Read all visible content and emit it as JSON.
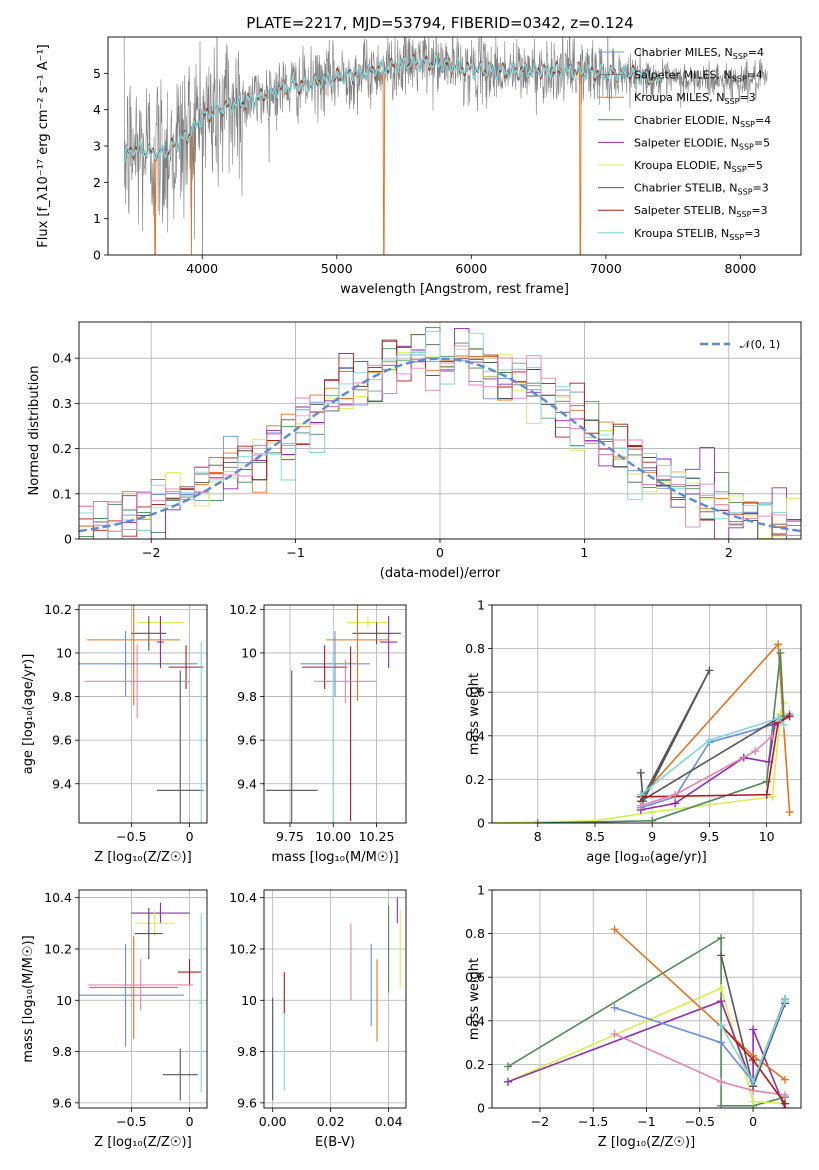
{
  "figure": {
    "title": "PLATE=2217, MJD=53794, FIBERID=0342, z=0.124"
  },
  "colors": {
    "chabrier_miles": "#6b8fd8",
    "salpeter_miles": "#7a7a7a",
    "kroupa_miles": "#e2741f",
    "chabrier_elodie": "#4e8a5a",
    "salpeter_elodie": "#8e2bb0",
    "kroupa_elodie": "#d7ef4e",
    "chabrier_stelib": "#555555",
    "salpeter_stelib": "#b01a1a",
    "kroupa_stelib": "#7fd6da",
    "pink": "#e583b4",
    "normal_curve": "#5b8bd4",
    "spectrum_data": "#808080"
  },
  "chart_data": [
    {
      "id": "spectrum",
      "type": "line",
      "xlabel": "wavelength [Angstrom, rest frame]",
      "ylabel": "Flux [f_λ10⁻¹⁷ erg cm⁻² s⁻¹ A⁻¹]",
      "xlim": [
        3300,
        8450
      ],
      "ylim": [
        0,
        6
      ],
      "x_ticks": [
        4000,
        5000,
        6000,
        7000,
        8000
      ],
      "y_ticks": [
        0,
        1,
        2,
        3,
        4,
        5
      ],
      "grid": false,
      "legend_position": "top-right",
      "legend": [
        {
          "text": "Chabrier MILES, N",
          "sub": "SSP",
          "tail": "=4",
          "color_key": "chabrier_miles"
        },
        {
          "text": "Salpeter MILES, N",
          "sub": "SSP",
          "tail": "=4",
          "color_key": "salpeter_miles"
        },
        {
          "text": "Kroupa MILES, N",
          "sub": "SSP",
          "tail": "=3",
          "color_key": "kroupa_miles"
        },
        {
          "text": "Chabrier ELODIE, N",
          "sub": "SSP",
          "tail": "=4",
          "color_key": "chabrier_elodie"
        },
        {
          "text": "Salpeter ELODIE, N",
          "sub": "SSP",
          "tail": "=5",
          "color_key": "salpeter_elodie"
        },
        {
          "text": "Kroupa ELODIE, N",
          "sub": "SSP",
          "tail": "=5",
          "color_key": "kroupa_elodie"
        },
        {
          "text": "Chabrier STELIB, N",
          "sub": "SSP",
          "tail": "=3",
          "color_key": "chabrier_stelib"
        },
        {
          "text": "Salpeter STELIB, N",
          "sub": "SSP",
          "tail": "=3",
          "color_key": "salpeter_stelib"
        },
        {
          "text": "Kroupa STELIB, N",
          "sub": "SSP",
          "tail": "=3",
          "color_key": "kroupa_stelib"
        }
      ],
      "continuum_knots": [
        [
          3400,
          2.7
        ],
        [
          3500,
          2.9
        ],
        [
          3700,
          2.8
        ],
        [
          3900,
          3.3
        ],
        [
          4000,
          3.8
        ],
        [
          4200,
          4.1
        ],
        [
          4400,
          4.3
        ],
        [
          4600,
          4.6
        ],
        [
          4800,
          4.7
        ],
        [
          5000,
          4.9
        ],
        [
          5200,
          5.0
        ],
        [
          5400,
          5.2
        ],
        [
          5600,
          5.3
        ],
        [
          5800,
          5.25
        ],
        [
          6000,
          5.1
        ],
        [
          6300,
          5.05
        ],
        [
          6600,
          5.1
        ],
        [
          7000,
          5.0
        ],
        [
          7200,
          5.0
        ],
        [
          7400,
          4.8
        ]
      ],
      "data_noise_sigma": 1.0,
      "orange_dropouts": [
        3650,
        3920,
        5350,
        6810,
        7420
      ]
    },
    {
      "id": "residuals",
      "type": "step",
      "xlabel": "(data-model)/error",
      "ylabel": "Normed distribution",
      "xlim": [
        -2.5,
        2.5
      ],
      "ylim": [
        0,
        0.48
      ],
      "x_ticks": [
        -2,
        -1,
        0,
        1,
        2
      ],
      "y_ticks": [
        0.0,
        0.1,
        0.2,
        0.3,
        0.4
      ],
      "grid": true,
      "legend_position": "top-right",
      "legend": [
        {
          "text": "𝒩(0, 1)",
          "style": "dashed",
          "color_key": "normal_curve"
        }
      ],
      "bin_width": 0.1,
      "series_color_keys": [
        "chabrier_miles",
        "kroupa_miles",
        "chabrier_elodie",
        "salpeter_elodie",
        "kroupa_elodie",
        "chabrier_stelib",
        "salpeter_stelib",
        "kroupa_stelib",
        "pink"
      ]
    },
    {
      "id": "age_vs_Z",
      "type": "errorbar",
      "xlabel": "Z [log₁₀(Z/Z☉)]",
      "ylabel": "age  [log₁₀(age/yr)]",
      "xlim": [
        -0.95,
        0.15
      ],
      "ylim": [
        9.22,
        10.22
      ],
      "x_ticks": [
        -0.5,
        0.0
      ],
      "y_ticks": [
        9.4,
        9.6,
        9.8,
        10.0,
        10.2
      ],
      "grid": true,
      "points": [
        {
          "c": "kroupa_elodie",
          "x": -0.25,
          "xerr": 0.2,
          "y": 10.14,
          "yerr": 0.03
        },
        {
          "c": "chabrier_stelib",
          "x": -0.35,
          "xerr": 0.15,
          "y": 10.09,
          "yerr": 0.08
        },
        {
          "c": "kroupa_miles",
          "x": -0.48,
          "xerr": 0.4,
          "y": 10.06,
          "yerr": 0.3
        },
        {
          "c": "chabrier_miles",
          "x": -0.55,
          "xerr": 0.62,
          "y": 9.95,
          "yerr": 0.15
        },
        {
          "c": "salpeter_stelib",
          "x": -0.03,
          "xerr": 0.15,
          "y": 9.935,
          "yerr": 0.1
        },
        {
          "c": "pink",
          "x": -0.45,
          "xerr": 0.45,
          "y": 9.87,
          "yerr": 0.17
        },
        {
          "c": "chabrier_stelib",
          "x": -0.08,
          "xerr": 0.2,
          "y": 9.37,
          "yerr": 0.55
        },
        {
          "c": "kroupa_stelib",
          "x": 0.1,
          "xerr": 0.02,
          "y": 9.6,
          "yerr": 0.45
        },
        {
          "c": "salpeter_elodie",
          "x": -0.25,
          "xerr": 0.03,
          "y": 10.05,
          "yerr": 0.12
        }
      ]
    },
    {
      "id": "age_vs_mass",
      "type": "errorbar",
      "xlabel": "mass [log₁₀(M/M☉)]",
      "ylabel": "",
      "xlim": [
        9.6,
        10.42
      ],
      "ylim": [
        9.22,
        10.22
      ],
      "x_ticks": [
        9.75,
        10.0,
        10.25
      ],
      "x_tick_labels": [
        "9.75",
        "10.00",
        "10.25"
      ],
      "y_ticks": [
        9.4,
        9.6,
        9.8,
        10.0,
        10.2
      ],
      "grid": true,
      "points": [
        {
          "c": "kroupa_elodie",
          "x": 10.2,
          "xerr": 0.12,
          "y": 10.14,
          "yerr": 0.03
        },
        {
          "c": "chabrier_stelib",
          "x": 10.25,
          "xerr": 0.14,
          "y": 10.09,
          "yerr": 0.05
        },
        {
          "c": "kroupa_miles",
          "x": 10.14,
          "xerr": 0.18,
          "y": 10.06,
          "yerr": 0.28
        },
        {
          "c": "chabrier_miles",
          "x": 10.01,
          "xerr": 0.2,
          "y": 9.95,
          "yerr": 0.15
        },
        {
          "c": "salpeter_stelib",
          "x": 9.95,
          "xerr": 0.13,
          "y": 9.935,
          "yerr": 0.1
        },
        {
          "c": "salpeter_stelib",
          "x": 10.1,
          "xerr": 0.0,
          "y": 9.63,
          "yerr": 0.4
        },
        {
          "c": "pink",
          "x": 10.07,
          "xerr": 0.18,
          "y": 9.87,
          "yerr": 0.1
        },
        {
          "c": "chabrier_stelib",
          "x": 9.76,
          "xerr": 0.15,
          "y": 9.37,
          "yerr": 0.55
        },
        {
          "c": "kroupa_stelib",
          "x": 10.0,
          "xerr": 0.0,
          "y": 9.6,
          "yerr": 0.4
        },
        {
          "c": "salpeter_elodie",
          "x": 10.32,
          "xerr": 0.05,
          "y": 10.05,
          "yerr": 0.12
        }
      ]
    },
    {
      "id": "weight_vs_age",
      "type": "line",
      "xlabel": "age  [log₁₀(age/yr)]",
      "ylabel": "mass weight",
      "xlim": [
        7.6,
        10.3
      ],
      "ylim": [
        0,
        1.0
      ],
      "x_ticks": [
        8.0,
        8.5,
        9.0,
        9.5,
        10.0
      ],
      "y_ticks": [
        0.0,
        0.2,
        0.4,
        0.6,
        0.8,
        1.0
      ],
      "grid": true,
      "series": [
        {
          "c": "kroupa_elodie",
          "points": [
            [
              7.6,
              0.0
            ],
            [
              8.5,
              0.01
            ],
            [
              9.0,
              0.05
            ],
            [
              10.05,
              0.12
            ],
            [
              10.12,
              0.5
            ],
            [
              10.15,
              0.55
            ]
          ]
        },
        {
          "c": "chabrier_miles",
          "points": [
            [
              8.9,
              0.07
            ],
            [
              9.2,
              0.12
            ],
            [
              9.5,
              0.37
            ],
            [
              10.05,
              0.45
            ],
            [
              10.2,
              0.5
            ]
          ]
        },
        {
          "c": "kroupa_miles",
          "points": [
            [
              8.9,
              0.12
            ],
            [
              10.1,
              0.82
            ],
            [
              10.2,
              0.05
            ]
          ]
        },
        {
          "c": "chabrier_elodie",
          "points": [
            [
              8.0,
              0.0
            ],
            [
              9.0,
              0.01
            ],
            [
              10.0,
              0.19
            ],
            [
              10.12,
              0.78
            ],
            [
              10.15,
              0.49
            ]
          ]
        },
        {
          "c": "salpeter_elodie",
          "points": [
            [
              8.9,
              0.06
            ],
            [
              9.2,
              0.09
            ],
            [
              9.8,
              0.3
            ],
            [
              10.02,
              0.28
            ],
            [
              10.07,
              0.45
            ],
            [
              10.2,
              0.49
            ]
          ]
        },
        {
          "c": "chabrier_stelib",
          "points": [
            [
              8.9,
              0.23
            ],
            [
              8.92,
              0.1
            ],
            [
              9.5,
              0.7
            ],
            [
              8.9,
              0.1
            ],
            [
              10.1,
              0.48
            ]
          ]
        },
        {
          "c": "salpeter_stelib",
          "points": [
            [
              8.9,
              0.12
            ],
            [
              10.0,
              0.13
            ],
            [
              10.1,
              0.46
            ],
            [
              10.2,
              0.49
            ]
          ]
        },
        {
          "c": "kroupa_stelib",
          "points": [
            [
              8.9,
              0.13
            ],
            [
              9.5,
              0.38
            ],
            [
              10.1,
              0.48
            ],
            [
              10.15,
              0.45
            ]
          ]
        },
        {
          "c": "pink",
          "points": [
            [
              8.9,
              0.08
            ],
            [
              9.2,
              0.13
            ],
            [
              9.9,
              0.33
            ],
            [
              10.05,
              0.4
            ]
          ]
        }
      ]
    },
    {
      "id": "mass_vs_Z",
      "type": "errorbar",
      "xlabel": "Z [log₁₀(Z/Z☉)]",
      "ylabel": "mass [log₁₀(M/M☉)]",
      "xlim": [
        -0.95,
        0.15
      ],
      "ylim": [
        9.58,
        10.43
      ],
      "x_ticks": [
        -0.5,
        0.0
      ],
      "y_ticks": [
        9.6,
        9.8,
        10.0,
        10.2,
        10.4
      ],
      "grid": true,
      "points": [
        {
          "c": "salpeter_elodie",
          "x": -0.25,
          "xerr": 0.25,
          "y": 10.34,
          "yerr": 0.04
        },
        {
          "c": "kroupa_elodie",
          "x": -0.3,
          "xerr": 0.17,
          "y": 10.3,
          "yerr": 0.05
        },
        {
          "c": "chabrier_stelib",
          "x": -0.35,
          "xerr": 0.12,
          "y": 10.26,
          "yerr": 0.1
        },
        {
          "c": "kroupa_miles",
          "x": -0.48,
          "xerr": 0.38,
          "y": 10.05,
          "yerr": 0.2
        },
        {
          "c": "chabrier_miles",
          "x": -0.55,
          "xerr": 0.5,
          "y": 10.02,
          "yerr": 0.2
        },
        {
          "c": "salpeter_stelib",
          "x": 0.0,
          "xerr": 0.1,
          "y": 10.11,
          "yerr": 0.05
        },
        {
          "c": "pink",
          "x": -0.42,
          "xerr": 0.45,
          "y": 10.06,
          "yerr": 0.1
        },
        {
          "c": "chabrier_stelib",
          "x": -0.08,
          "xerr": 0.15,
          "y": 9.71,
          "yerr": 0.1
        },
        {
          "c": "kroupa_stelib",
          "x": 0.1,
          "xerr": 0.02,
          "y": 9.99,
          "yerr": 0.35
        }
      ]
    },
    {
      "id": "mass_vs_ebv",
      "type": "errorbar",
      "xlabel": "E(B-V)",
      "ylabel": "",
      "xlim": [
        -0.003,
        0.046
      ],
      "ylim": [
        9.58,
        10.43
      ],
      "x_ticks": [
        0.0,
        0.02,
        0.04
      ],
      "x_tick_labels": [
        "0.00",
        "0.02",
        "0.04"
      ],
      "y_ticks": [
        9.6,
        9.8,
        10.0,
        10.2,
        10.4
      ],
      "grid": true,
      "points": [
        {
          "c": "chabrier_stelib",
          "x": 0.0,
          "xerr": 0.0,
          "y": 9.81,
          "yerr": 0.2
        },
        {
          "c": "salpeter_stelib",
          "x": 0.004,
          "xerr": 0.0,
          "y": 10.03,
          "yerr": 0.08
        },
        {
          "c": "kroupa_stelib",
          "x": 0.004,
          "xerr": 0.0,
          "y": 9.8,
          "yerr": 0.15
        },
        {
          "c": "pink",
          "x": 0.027,
          "xerr": 0.0,
          "y": 10.15,
          "yerr": 0.15
        },
        {
          "c": "chabrier_miles",
          "x": 0.034,
          "xerr": 0.0,
          "y": 10.06,
          "yerr": 0.16
        },
        {
          "c": "kroupa_miles",
          "x": 0.036,
          "xerr": 0.0,
          "y": 10.0,
          "yerr": 0.16
        },
        {
          "c": "chabrier_elodie",
          "x": 0.04,
          "xerr": 0.0,
          "y": 10.2,
          "yerr": 0.17
        },
        {
          "c": "salpeter_elodie",
          "x": 0.043,
          "xerr": 0.0,
          "y": 10.35,
          "yerr": 0.05
        },
        {
          "c": "kroupa_elodie",
          "x": 0.044,
          "xerr": 0.0,
          "y": 10.2,
          "yerr": 0.15
        }
      ]
    },
    {
      "id": "weight_vs_Z",
      "type": "line",
      "xlabel": "Z [log₁₀(Z/Z☉)]",
      "ylabel": "mass weight",
      "xlim": [
        -2.45,
        0.45
      ],
      "ylim": [
        0,
        1.0
      ],
      "x_ticks": [
        -2.0,
        -1.5,
        -1.0,
        -0.5,
        0.0
      ],
      "y_ticks": [
        0.0,
        0.2,
        0.4,
        0.6,
        0.8,
        1.0
      ],
      "grid": true,
      "series": [
        {
          "c": "chabrier_elodie",
          "points": [
            [
              -2.3,
              0.19
            ],
            [
              -0.3,
              0.78
            ],
            [
              -0.3,
              0.01
            ],
            [
              0.0,
              0.01
            ],
            [
              0.3,
              0.05
            ]
          ]
        },
        {
          "c": "kroupa_elodie",
          "points": [
            [
              -2.3,
              0.12
            ],
            [
              -0.3,
              0.55
            ],
            [
              0.0,
              0.03
            ],
            [
              0.3,
              0.02
            ]
          ]
        },
        {
          "c": "salpeter_elodie",
          "points": [
            [
              -2.3,
              0.12
            ],
            [
              -0.3,
              0.49
            ],
            [
              0.0,
              0.1
            ],
            [
              0.0,
              0.36
            ],
            [
              0.3,
              0.0
            ]
          ]
        },
        {
          "c": "kroupa_miles",
          "points": [
            [
              -1.3,
              0.82
            ],
            [
              0.0,
              0.24
            ],
            [
              0.3,
              0.13
            ]
          ]
        },
        {
          "c": "chabrier_miles",
          "points": [
            [
              -1.3,
              0.46
            ],
            [
              -0.3,
              0.3
            ],
            [
              0.0,
              0.12
            ],
            [
              0.3,
              0.5
            ]
          ]
        },
        {
          "c": "pink",
          "points": [
            [
              -1.3,
              0.34
            ],
            [
              -0.3,
              0.12
            ],
            [
              0.0,
              0.08
            ],
            [
              0.3,
              0.06
            ]
          ]
        },
        {
          "c": "chabrier_stelib",
          "points": [
            [
              -0.3,
              0.7
            ],
            [
              0.0,
              0.1
            ],
            [
              0.3,
              0.48
            ]
          ]
        },
        {
          "c": "salpeter_stelib",
          "points": [
            [
              -0.3,
              0.38
            ],
            [
              0.0,
              0.22
            ],
            [
              0.3,
              0.02
            ]
          ]
        },
        {
          "c": "kroupa_stelib",
          "points": [
            [
              -0.3,
              0.38
            ],
            [
              0.0,
              0.12
            ],
            [
              0.3,
              0.49
            ]
          ]
        }
      ]
    }
  ]
}
